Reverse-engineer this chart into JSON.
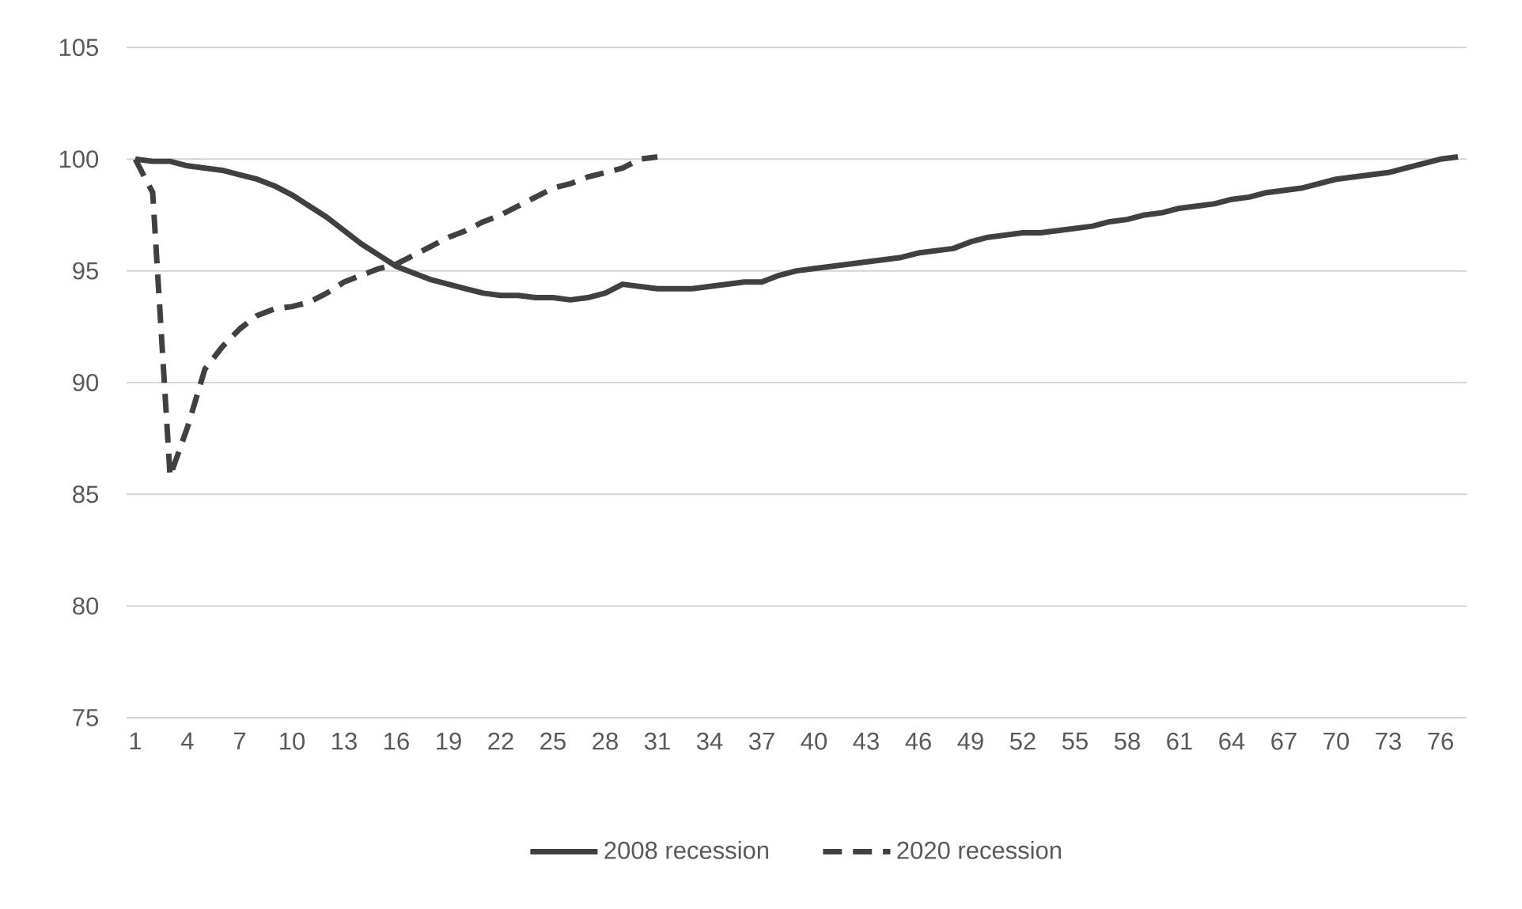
{
  "chart_data": {
    "type": "line",
    "categories": [
      "1",
      null,
      null,
      "4",
      null,
      null,
      "7",
      null,
      null,
      "10",
      null,
      null,
      "13",
      null,
      null,
      "16",
      null,
      null,
      "19",
      null,
      null,
      "22",
      null,
      null,
      "25",
      null,
      null,
      "28",
      null,
      null,
      "31",
      null,
      null,
      "34",
      null,
      null,
      "37",
      null,
      null,
      "40",
      null,
      null,
      "43",
      null,
      null,
      "46",
      null,
      null,
      "49",
      null,
      null,
      "52",
      null,
      null,
      "55",
      null,
      null,
      "58",
      null,
      null,
      "61",
      null,
      null,
      "64",
      null,
      null,
      "67",
      null,
      null,
      "70",
      null,
      null,
      "73",
      null,
      null,
      "76",
      null
    ],
    "series": [
      {
        "name": "2008 recession",
        "color": "#404040",
        "line_style": "solid",
        "values": [
          100,
          99.9,
          99.9,
          99.7,
          99.6,
          99.5,
          99.3,
          99.1,
          98.8,
          98.4,
          97.9,
          97.4,
          96.8,
          96.2,
          95.7,
          95.2,
          94.9,
          94.6,
          94.4,
          94.2,
          94.0,
          93.9,
          93.9,
          93.8,
          93.8,
          93.7,
          93.8,
          94.0,
          94.4,
          94.3,
          94.2,
          94.2,
          94.2,
          94.3,
          94.4,
          94.5,
          94.5,
          94.8,
          95.0,
          95.1,
          95.2,
          95.3,
          95.4,
          95.5,
          95.6,
          95.8,
          95.9,
          96.0,
          96.3,
          96.5,
          96.6,
          96.7,
          96.7,
          96.8,
          96.9,
          97.0,
          97.2,
          97.3,
          97.5,
          97.6,
          97.8,
          97.9,
          98.0,
          98.2,
          98.3,
          98.5,
          98.6,
          98.7,
          98.9,
          99.1,
          99.2,
          99.3,
          99.4,
          99.6,
          99.8,
          100.0,
          100.1
        ]
      },
      {
        "name": "2020 recession",
        "color": "#404040",
        "line_style": "dashed",
        "values": [
          100,
          98.5,
          85.8,
          88.0,
          90.6,
          91.6,
          92.4,
          93.0,
          93.3,
          93.4,
          93.6,
          94.0,
          94.5,
          94.8,
          95.1,
          95.3,
          95.7,
          96.1,
          96.5,
          96.8,
          97.2,
          97.5,
          97.9,
          98.3,
          98.7,
          98.9,
          99.2,
          99.4,
          99.6,
          100.0,
          100.1,
          null,
          null,
          null,
          null,
          null,
          null,
          null,
          null,
          null,
          null,
          null,
          null,
          null,
          null,
          null,
          null,
          null,
          null,
          null,
          null,
          null,
          null,
          null,
          null,
          null,
          null,
          null,
          null,
          null,
          null,
          null,
          null,
          null,
          null,
          null,
          null,
          null,
          null,
          null,
          null,
          null,
          null,
          null,
          null,
          null,
          null
        ]
      }
    ],
    "ylim": [
      75,
      105
    ],
    "yticks": [
      75,
      80,
      85,
      90,
      95,
      100,
      105
    ],
    "grid": "y",
    "legend": "bottom"
  }
}
